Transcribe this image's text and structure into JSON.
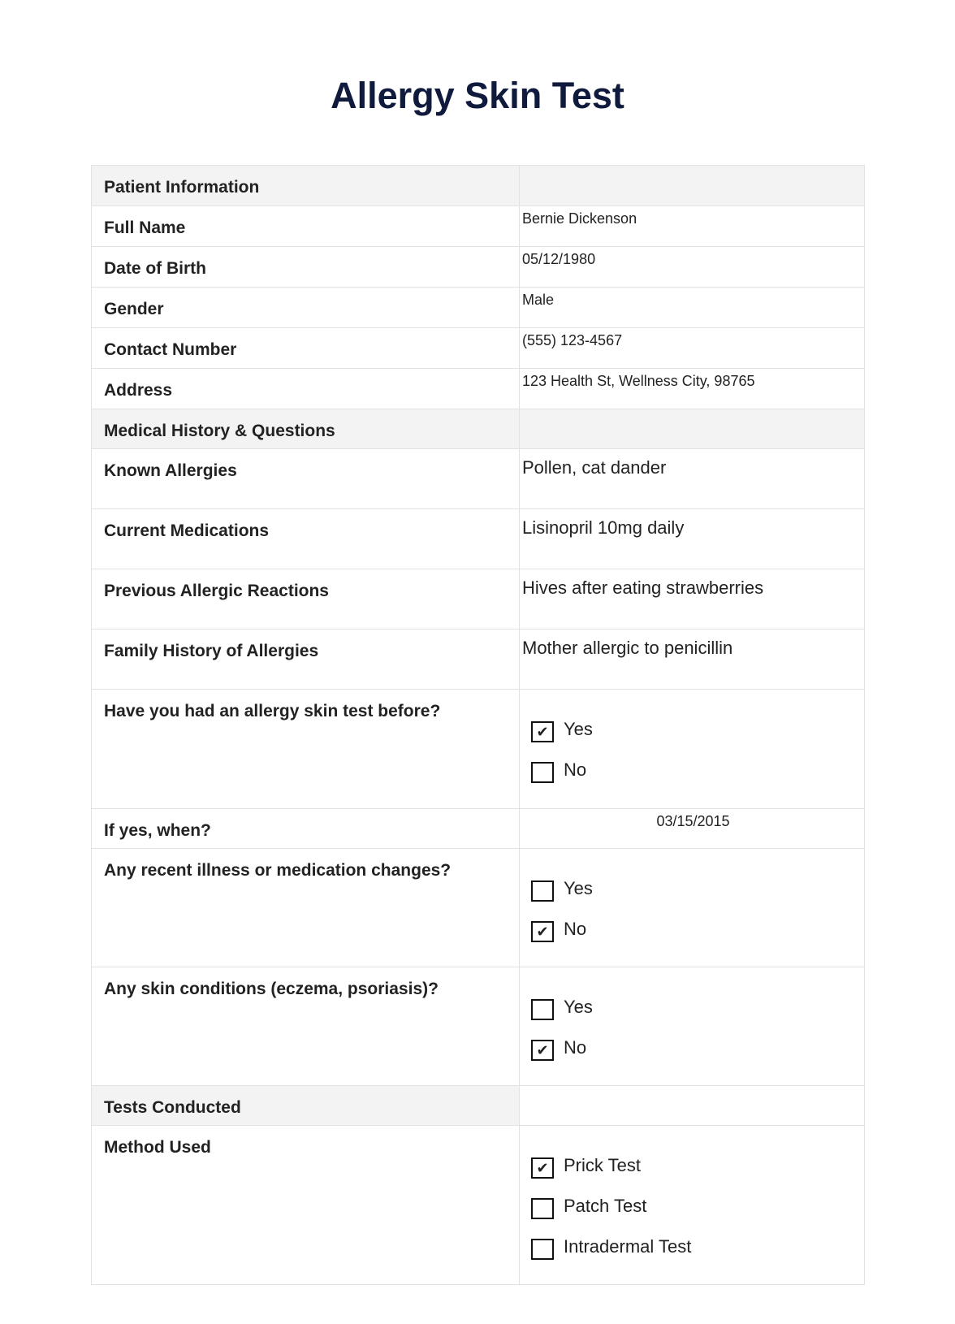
{
  "title": "Allergy Skin Test",
  "sections": {
    "patient": "Patient Information",
    "medical": "Medical History & Questions",
    "tests": "Tests Conducted"
  },
  "patient": [
    {
      "label": "Full Name",
      "value": "Bernie Dickenson"
    },
    {
      "label": "Date of Birth",
      "value": "05/12/1980"
    },
    {
      "label": "Gender",
      "value": "Male"
    },
    {
      "label": "Contact Number",
      "value": "(555) 123-4567"
    },
    {
      "label": "Address",
      "value": "123 Health St, Wellness City, 98765"
    }
  ],
  "medical": [
    {
      "label": "Known Allergies",
      "value": "Pollen, cat dander"
    },
    {
      "label": "Current Medications",
      "value": "Lisinopril 10mg daily"
    },
    {
      "label": "Previous Allergic Reactions",
      "value": "Hives after eating strawberries"
    },
    {
      "label": "Family History of Allergies",
      "value": "Mother allergic to penicillin"
    }
  ],
  "q_prev": {
    "label": "Have you had an allergy skin test before?",
    "options": [
      {
        "label": "Yes",
        "checked": true
      },
      {
        "label": "No",
        "checked": false
      }
    ]
  },
  "q_when": {
    "label": "If yes, when?",
    "value": "03/15/2015"
  },
  "q_illness": {
    "label": "Any recent illness or medication changes?",
    "options": [
      {
        "label": "Yes",
        "checked": false
      },
      {
        "label": "No",
        "checked": true
      }
    ]
  },
  "q_skin": {
    "label": "Any skin conditions (eczema, psoriasis)?",
    "options": [
      {
        "label": "Yes",
        "checked": false
      },
      {
        "label": "No",
        "checked": true
      }
    ]
  },
  "method": {
    "label": "Method Used",
    "options": [
      {
        "label": "Prick Test",
        "checked": true
      },
      {
        "label": "Patch Test",
        "checked": false
      },
      {
        "label": "Intradermal Test",
        "checked": false
      }
    ]
  },
  "check_glyph": "✔"
}
